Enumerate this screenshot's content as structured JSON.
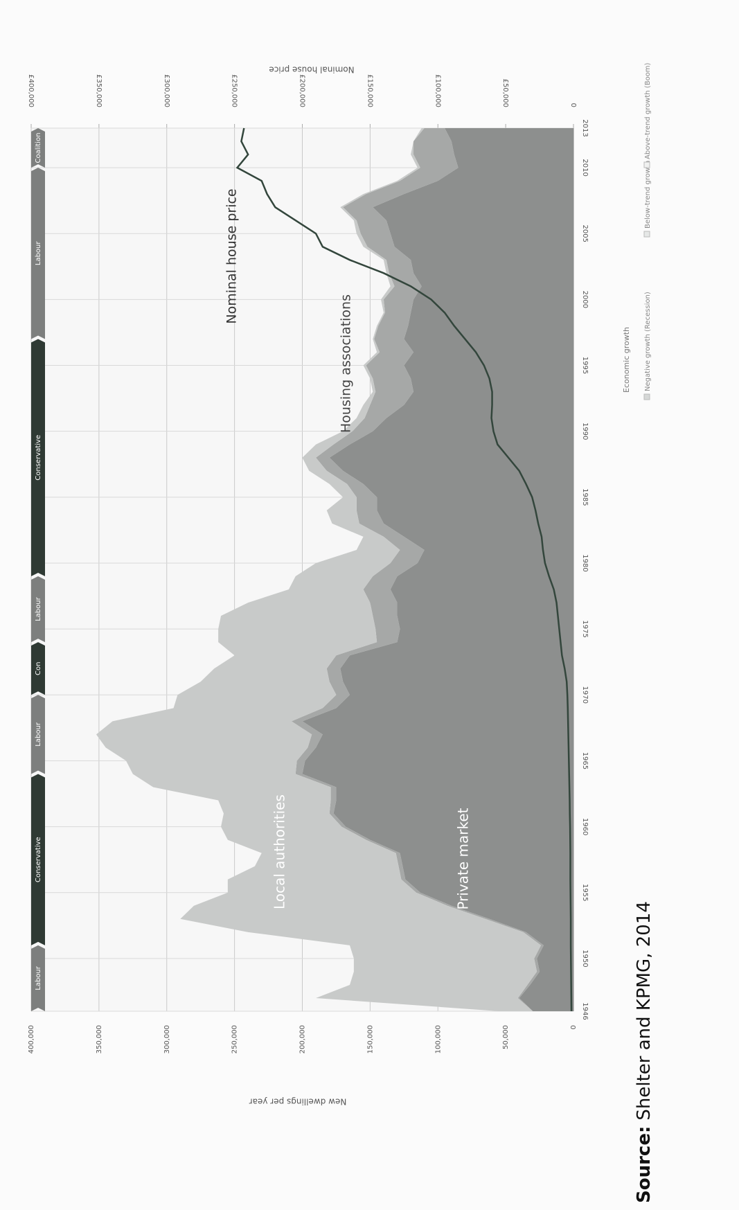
{
  "chart_data": {
    "type": "stacked-area",
    "xlabel": null,
    "ylabel": "New dwellings per year",
    "y2label": "Nominal house price",
    "source_label": "Source:",
    "source": "Shelter and KPMG, 2014",
    "x": [
      1946,
      1947,
      1948,
      1949,
      1950,
      1951,
      1952,
      1953,
      1954,
      1955,
      1956,
      1957,
      1958,
      1959,
      1960,
      1961,
      1962,
      1963,
      1964,
      1965,
      1966,
      1967,
      1968,
      1969,
      1970,
      1971,
      1972,
      1973,
      1974,
      1975,
      1976,
      1977,
      1978,
      1979,
      1980,
      1981,
      1982,
      1983,
      1984,
      1985,
      1986,
      1987,
      1988,
      1989,
      1990,
      1991,
      1992,
      1993,
      1994,
      1995,
      1996,
      1997,
      1998,
      1999,
      2000,
      2001,
      2002,
      2003,
      2004,
      2005,
      2006,
      2007,
      2008,
      2009,
      2010,
      2011,
      2012,
      2013
    ],
    "series": [
      {
        "name": "Private market",
        "color": "#8d8f8e",
        "label_color": "#ffffff",
        "values": [
          30000,
          40000,
          32000,
          25000,
          27000,
          22000,
          35000,
          62000,
          90000,
          113000,
          124000,
          126000,
          128000,
          150000,
          168000,
          177000,
          175000,
          175000,
          200000,
          198000,
          190000,
          185000,
          200000,
          175000,
          165000,
          170000,
          172000,
          165000,
          130000,
          128000,
          130000,
          130000,
          135000,
          130000,
          115000,
          110000,
          125000,
          140000,
          145000,
          145000,
          155000,
          170000,
          180000,
          165000,
          148000,
          138000,
          125000,
          118000,
          120000,
          125000,
          118000,
          125000,
          122000,
          120000,
          118000,
          112000,
          118000,
          120000,
          132000,
          135000,
          138000,
          148000,
          125000,
          100000,
          85000,
          88000,
          90000,
          95000
        ]
      },
      {
        "name": "Housing associations",
        "color": "#a6a8a7",
        "label_color": "#444444",
        "values": [
          0,
          1000,
          2000,
          2000,
          2000,
          2000,
          2000,
          3000,
          3000,
          3000,
          3000,
          3000,
          3000,
          3000,
          3000,
          3000,
          4000,
          4000,
          5000,
          6000,
          6000,
          8000,
          8000,
          10000,
          10000,
          10000,
          10000,
          10000,
          15000,
          18000,
          18000,
          20000,
          20000,
          18000,
          20000,
          18000,
          15000,
          18000,
          15000,
          15000,
          12000,
          12000,
          10000,
          12000,
          15000,
          16000,
          25000,
          28000,
          28000,
          28000,
          25000,
          22000,
          22000,
          19000,
          22000,
          20000,
          18000,
          18000,
          20000,
          22000,
          22000,
          22000,
          28000,
          28000,
          28000,
          30000,
          28000,
          15000
        ]
      },
      {
        "name": "Local authorities",
        "color": "#c8cac9",
        "label_color": "#ffffff",
        "values": [
          25000,
          149000,
          131000,
          135000,
          133000,
          141000,
          203000,
          225000,
          187000,
          139000,
          128000,
          106000,
          99000,
          102000,
          89000,
          78000,
          83000,
          131000,
          120000,
          126000,
          149000,
          159000,
          132000,
          110000,
          117000,
          95000,
          83000,
          75000,
          117000,
          116000,
          112000,
          90000,
          55000,
          57000,
          55000,
          32000,
          15000,
          20000,
          22000,
          10000,
          13000,
          13000,
          10000,
          13000,
          7000,
          6000,
          5000,
          2000,
          2000,
          2000,
          2000,
          1000,
          1000,
          1000,
          2000,
          3000,
          2000,
          2000,
          3000,
          3000,
          2000,
          2000,
          2000,
          2000,
          2000,
          2000,
          0,
          2000
        ]
      },
      {
        "name": "Nominal house price",
        "type": "line",
        "axis": "y2",
        "color": "#33463c",
        "values": [
          1500,
          1600,
          1700,
          1800,
          1900,
          2000,
          2000,
          2000,
          2100,
          2200,
          2300,
          2300,
          2300,
          2400,
          2500,
          2700,
          2800,
          3000,
          3200,
          3400,
          3600,
          3800,
          4000,
          4200,
          4500,
          5000,
          6500,
          8500,
          9500,
          10500,
          11500,
          12500,
          14500,
          18000,
          21000,
          22500,
          23500,
          26000,
          28000,
          30500,
          35000,
          40000,
          48000,
          56000,
          59000,
          60500,
          60000,
          60000,
          62000,
          66000,
          72000,
          80000,
          88000,
          95000,
          105000,
          120000,
          140000,
          165000,
          185000,
          190000,
          205000,
          220000,
          226000,
          230000,
          248000,
          240000,
          245000,
          243000
        ]
      }
    ],
    "xlim": [
      1946,
      2013
    ],
    "xticks": [
      1946,
      1950,
      1955,
      1960,
      1965,
      1970,
      1975,
      1980,
      1985,
      1990,
      1995,
      2000,
      2005,
      2010,
      2013
    ],
    "ylim": [
      0,
      400000
    ],
    "yticks": [
      0,
      {
        "value": 50000,
        "label": "50,000"
      },
      {
        "value": 100000,
        "label": "100,000"
      },
      {
        "value": 150000,
        "label": "150,000"
      },
      {
        "value": 200000,
        "label": "200,000"
      },
      {
        "value": 250000,
        "label": "250,000"
      },
      {
        "value": 300000,
        "label": "300,000"
      },
      {
        "value": 350000,
        "label": "350,000"
      },
      {
        "value": 400000,
        "label": "400,000"
      }
    ],
    "y2lim": [
      0,
      400000
    ],
    "y2ticks": [
      0,
      {
        "value": 50000,
        "label": "£50,000"
      },
      {
        "value": 100000,
        "label": "£100,000"
      },
      {
        "value": 150000,
        "label": "£150,000"
      },
      {
        "value": 200000,
        "label": "£200,000"
      },
      {
        "value": 250000,
        "label": "£250,000"
      },
      {
        "value": 300000,
        "label": "£300,000"
      },
      {
        "value": 350000,
        "label": "£350,000"
      },
      {
        "value": 400000,
        "label": "£400,000"
      }
    ],
    "grid": true,
    "governments": [
      {
        "label": "Labour",
        "start": 1946,
        "end": 1951,
        "color": "#7d7f7e"
      },
      {
        "label": "Conservative",
        "start": 1951,
        "end": 1964,
        "color": "#2f3a34"
      },
      {
        "label": "Labour",
        "start": 1964,
        "end": 1970,
        "color": "#7d7f7e"
      },
      {
        "label": "Con",
        "start": 1970,
        "end": 1974,
        "color": "#2f3a34"
      },
      {
        "label": "Labour",
        "start": 1974,
        "end": 1979,
        "color": "#7d7f7e"
      },
      {
        "label": "Conservative",
        "start": 1979,
        "end": 1997,
        "color": "#2f3a34"
      },
      {
        "label": "Labour",
        "start": 1997,
        "end": 2010,
        "color": "#7d7f7e"
      },
      {
        "label": "Coalition",
        "start": 2010,
        "end": 2013,
        "color": "#7d7f7e"
      }
    ],
    "legend": {
      "title": "Economic growth",
      "items": [
        {
          "label": "Negative growth (Recession)",
          "color": "#d6d8d7"
        },
        {
          "label": "Below-trend growth",
          "color": "#e6e8e7"
        },
        {
          "label": "Above-trend growth (Boom)",
          "color": "#f0f1f0"
        }
      ]
    }
  }
}
